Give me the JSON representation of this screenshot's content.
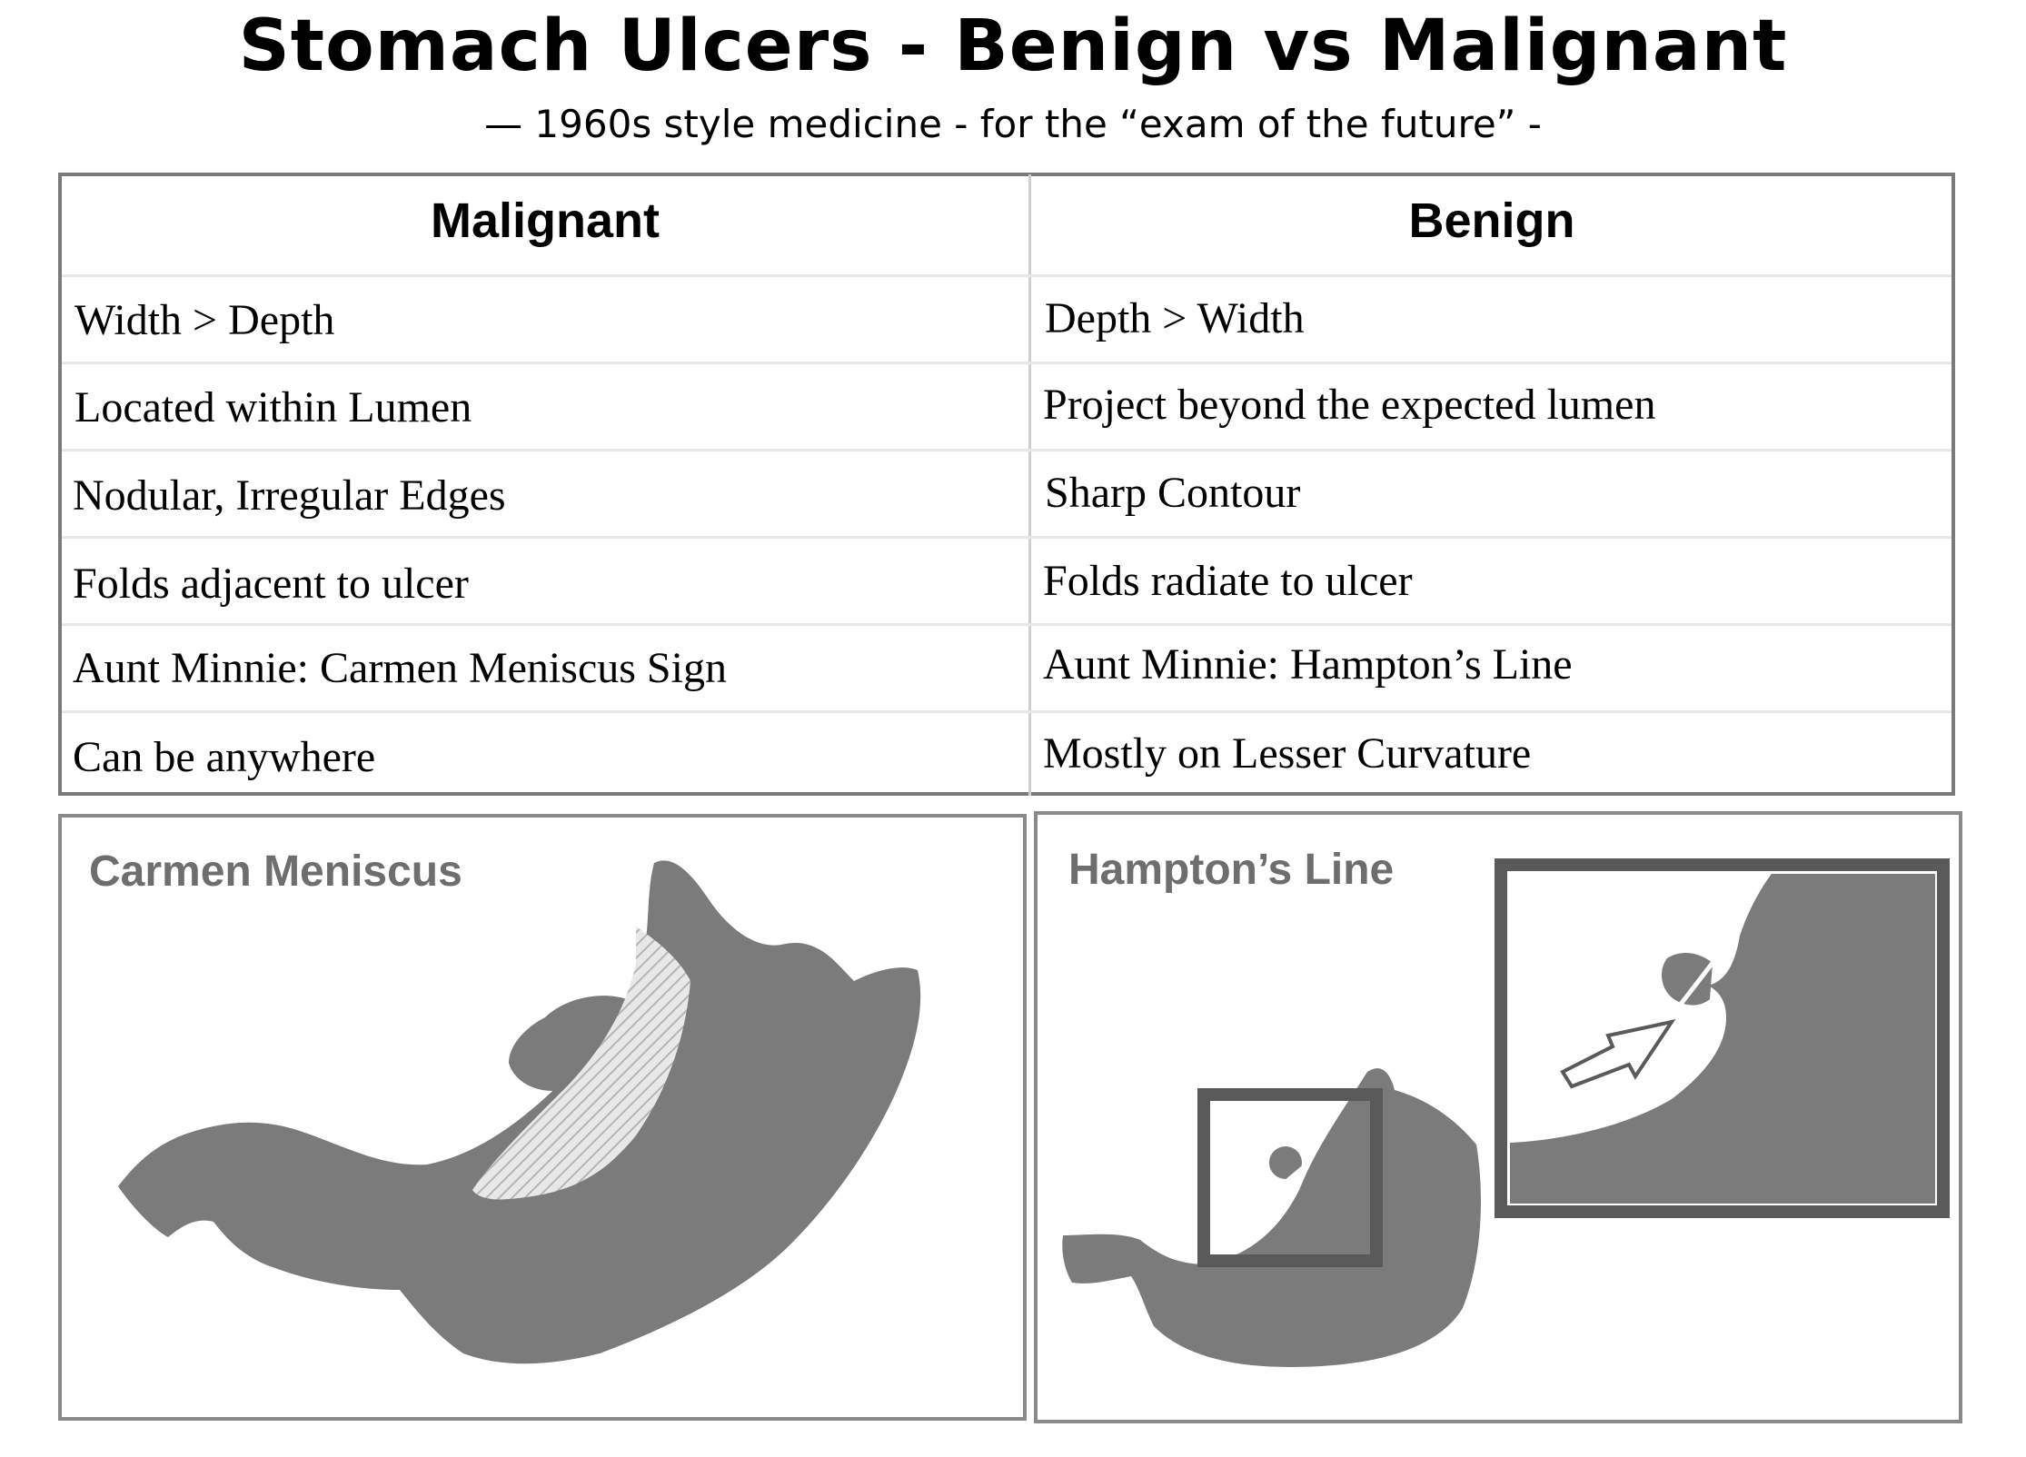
{
  "header": {
    "title": "Stomach Ulcers - Benign vs Malignant",
    "subtitle": "— 1960s style medicine - for the “exam of the future” -"
  },
  "table": {
    "headers": {
      "malignant": "Malignant",
      "benign": "Benign"
    },
    "rows": [
      {
        "malignant": "Width > Depth",
        "benign": "Depth > Width"
      },
      {
        "malignant": "Located within Lumen",
        "benign": "Project beyond the expected lumen"
      },
      {
        "malignant": "Nodular, Irregular Edges",
        "benign": "Sharp Contour"
      },
      {
        "malignant": "Folds adjacent to ulcer",
        "benign": "Folds radiate to ulcer"
      },
      {
        "malignant": "Aunt Minnie: Carmen Meniscus Sign",
        "benign": "Aunt Minnie: Hampton’s Line"
      },
      {
        "malignant": "Can be anywhere",
        "benign": "Mostly on Lesser Curvature"
      }
    ]
  },
  "panels": {
    "left": {
      "label": "Carmen Meniscus"
    },
    "right": {
      "label": "Hampton’s Line"
    }
  },
  "colors": {
    "stomach": "#7b7b7b",
    "frame": "#5a5a5a",
    "label": "#6e6e6e",
    "border": "#8a8a8a"
  }
}
